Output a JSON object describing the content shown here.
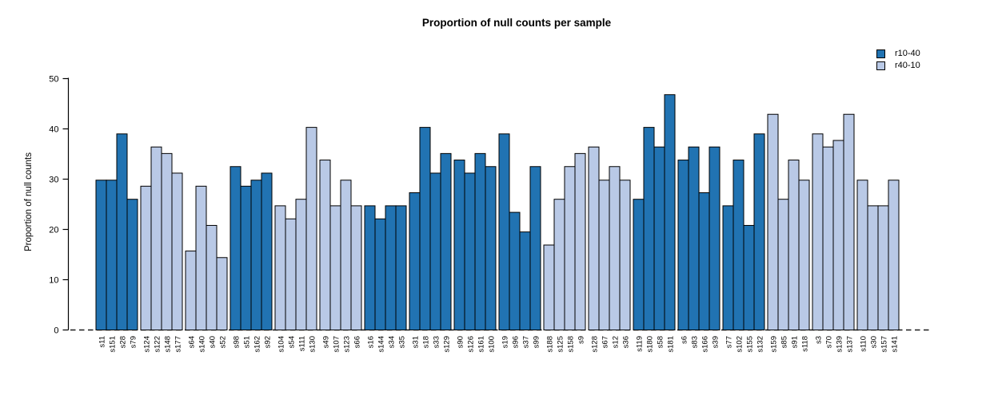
{
  "title": "Proportion of null counts per sample",
  "legend": {
    "items": [
      {
        "label": "r10-40",
        "series": "r10-40"
      },
      {
        "label": "r40-10",
        "series": "r40-10"
      }
    ]
  },
  "chart_data": {
    "type": "bar",
    "title": "Proportion of null counts per sample",
    "xlabel": "",
    "ylabel": "Proportion of null counts",
    "ylim": [
      0,
      50
    ],
    "yticks": [
      0,
      10,
      20,
      30,
      40,
      50
    ],
    "grid": false,
    "legend_position": "top-right",
    "baseline_style": "dashed",
    "group_size": 4,
    "series_colors": {
      "r10-40": "#2173b2",
      "r40-10": "#b9c9e6"
    },
    "bar_edge_color": "#000000",
    "categories": [
      "s11",
      "s151",
      "s28",
      "s79",
      "s124",
      "s122",
      "s148",
      "s177",
      "s64",
      "s140",
      "s40",
      "s52",
      "s98",
      "s51",
      "s162",
      "s92",
      "s104",
      "s54",
      "s111",
      "s130",
      "s49",
      "s107",
      "s123",
      "s66",
      "s16",
      "s144",
      "s34",
      "s35",
      "s31",
      "s18",
      "s33",
      "s129",
      "s90",
      "s126",
      "s161",
      "s100",
      "s19",
      "s96",
      "s37",
      "s99",
      "s188",
      "s125",
      "s158",
      "s9",
      "s128",
      "s67",
      "s12",
      "s36",
      "s119",
      "s180",
      "s58",
      "s181",
      "s6",
      "s83",
      "s166",
      "s39",
      "s77",
      "s102",
      "s155",
      "s132",
      "s159",
      "s85",
      "s91",
      "s118",
      "s3",
      "s70",
      "s139",
      "s137",
      "s110",
      "s30",
      "s157",
      "s141"
    ],
    "values": [
      29.8,
      29.8,
      39.0,
      26.0,
      28.6,
      36.4,
      35.1,
      31.2,
      15.7,
      28.6,
      20.8,
      14.4,
      32.5,
      28.6,
      29.8,
      31.2,
      24.7,
      22.1,
      26.0,
      40.3,
      33.8,
      24.7,
      29.8,
      24.7,
      24.7,
      22.1,
      24.7,
      24.7,
      27.3,
      40.3,
      31.2,
      35.1,
      33.8,
      31.2,
      35.1,
      32.5,
      39.0,
      23.4,
      19.5,
      32.5,
      16.9,
      26.0,
      32.5,
      35.1,
      36.4,
      29.8,
      32.5,
      29.8,
      26.0,
      40.3,
      36.4,
      46.8,
      33.8,
      36.4,
      27.3,
      36.4,
      24.7,
      33.8,
      20.8,
      39.0,
      42.9,
      26.0,
      33.8,
      29.8,
      39.0,
      36.4,
      37.7,
      42.9,
      29.8,
      24.7,
      24.7,
      29.8
    ],
    "series_of": [
      "r10-40",
      "r10-40",
      "r10-40",
      "r10-40",
      "r40-10",
      "r40-10",
      "r40-10",
      "r40-10",
      "r40-10",
      "r40-10",
      "r40-10",
      "r40-10",
      "r10-40",
      "r10-40",
      "r10-40",
      "r10-40",
      "r40-10",
      "r40-10",
      "r40-10",
      "r40-10",
      "r40-10",
      "r40-10",
      "r40-10",
      "r40-10",
      "r10-40",
      "r10-40",
      "r10-40",
      "r10-40",
      "r10-40",
      "r10-40",
      "r10-40",
      "r10-40",
      "r10-40",
      "r10-40",
      "r10-40",
      "r10-40",
      "r10-40",
      "r10-40",
      "r10-40",
      "r10-40",
      "r40-10",
      "r40-10",
      "r40-10",
      "r40-10",
      "r40-10",
      "r40-10",
      "r40-10",
      "r40-10",
      "r10-40",
      "r10-40",
      "r10-40",
      "r10-40",
      "r10-40",
      "r10-40",
      "r10-40",
      "r10-40",
      "r10-40",
      "r10-40",
      "r10-40",
      "r10-40",
      "r40-10",
      "r40-10",
      "r40-10",
      "r40-10",
      "r40-10",
      "r40-10",
      "r40-10",
      "r40-10",
      "r40-10",
      "r40-10",
      "r40-10",
      "r40-10"
    ]
  }
}
